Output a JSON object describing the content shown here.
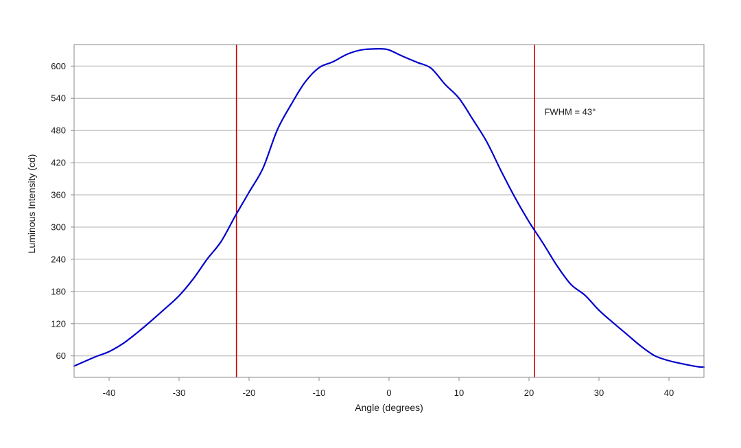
{
  "chart_data": {
    "type": "line",
    "title": "",
    "xlabel": "Angle (degrees)",
    "ylabel": "Luminous Intensity (cd)",
    "xlim": [
      -45,
      45
    ],
    "ylim": [
      20,
      640
    ],
    "grid": {
      "horizontal": true,
      "vertical": false
    },
    "xticks": [
      -40,
      -30,
      -20,
      -10,
      0,
      10,
      20,
      30,
      40
    ],
    "yticks": [
      60,
      120,
      180,
      240,
      300,
      360,
      420,
      480,
      540,
      600
    ],
    "colors": {
      "curve": "#0000cc",
      "marker_lines": "#cc0000",
      "grid": "#b0b0b0",
      "frame": "#888888"
    },
    "series": [
      {
        "x": [
          -45,
          -42,
          -40,
          -38,
          -36,
          -34,
          -32,
          -30,
          -28,
          -26,
          -24,
          -22,
          -20,
          -18,
          -16,
          -14,
          -12,
          -10,
          -8,
          -6,
          -4,
          -2,
          -1,
          0,
          2,
          4,
          6,
          8,
          10,
          12,
          14,
          16,
          18,
          20,
          22,
          24,
          26,
          28,
          30,
          32,
          34,
          36,
          38,
          40,
          42,
          44,
          45
        ],
        "y": [
          41,
          58,
          68,
          83,
          103,
          125,
          148,
          172,
          203,
          240,
          273,
          320,
          365,
          410,
          480,
          528,
          570,
          597,
          608,
          622,
          630,
          632,
          632,
          630,
          618,
          607,
          596,
          566,
          540,
          500,
          458,
          405,
          355,
          310,
          270,
          228,
          193,
          173,
          145,
          122,
          100,
          78,
          60,
          51,
          45,
          40,
          39
        ]
      }
    ],
    "vertical_lines": [
      -21.8,
      20.8
    ],
    "annotations": [
      {
        "text": "FWHM = 43°",
        "x": 22.2,
        "y": 515
      }
    ]
  }
}
